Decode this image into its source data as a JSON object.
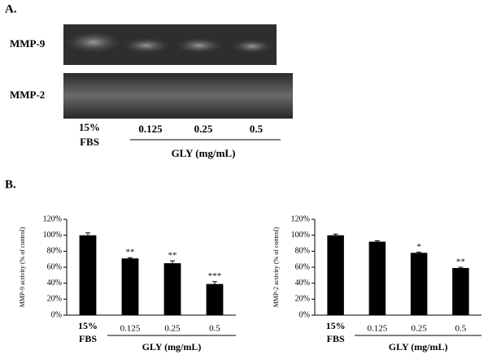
{
  "panel_a": {
    "label": "A.",
    "gels": [
      {
        "label": "MMP-9"
      },
      {
        "label": "MMP-2"
      }
    ],
    "lanes": [
      "15% FBS",
      "0.125",
      "0.25",
      "0.5"
    ],
    "group_label": "GLY (mg/mL)"
  },
  "panel_b": {
    "label": "B."
  },
  "chart_data": [
    {
      "type": "bar",
      "y_label": "MMP-9 activity (% of control)",
      "categories": [
        "15% FBS",
        "0.125",
        "0.25",
        "0.5"
      ],
      "values": [
        100,
        71,
        65,
        39
      ],
      "errors": [
        3,
        1,
        3,
        3
      ],
      "annotations": [
        null,
        "**",
        "**",
        "***"
      ],
      "group_label": "GLY (mg/mL)",
      "color": "#000000",
      "ylim": [
        0,
        120
      ],
      "yticks": [
        {
          "value": 0,
          "label": "0%"
        },
        {
          "value": 20,
          "label": "20%"
        },
        {
          "value": 40,
          "label": "40%"
        },
        {
          "value": 60,
          "label": "60%"
        },
        {
          "value": 80,
          "label": "80%"
        },
        {
          "value": 100,
          "label": "100%"
        },
        {
          "value": 120,
          "label": "120%"
        }
      ]
    },
    {
      "type": "bar",
      "y_label": "MMP-2 activity (% of control)",
      "categories": [
        "15% FBS",
        "0.125",
        "0.25",
        "0.5"
      ],
      "values": [
        100,
        92,
        78,
        59
      ],
      "errors": [
        1.5,
        1,
        1,
        1
      ],
      "annotations": [
        null,
        null,
        "*",
        "**"
      ],
      "group_label": "GLY (mg/mL)",
      "color": "#000000",
      "ylim": [
        0,
        120
      ],
      "yticks": [
        {
          "value": 0,
          "label": "0%"
        },
        {
          "value": 20,
          "label": "20%"
        },
        {
          "value": 40,
          "label": "40%"
        },
        {
          "value": 60,
          "label": "60%"
        },
        {
          "value": 80,
          "label": "80%"
        },
        {
          "value": 100,
          "label": "100%"
        },
        {
          "value": 120,
          "label": "120%"
        }
      ]
    }
  ]
}
